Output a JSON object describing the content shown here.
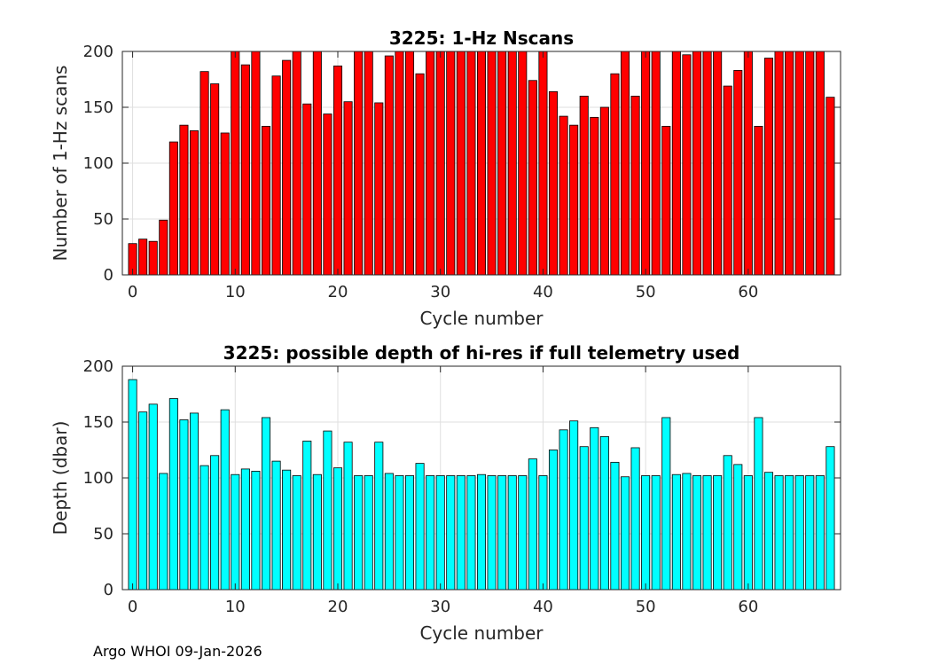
{
  "footer": "Argo WHOI 09-Jan-2026",
  "chart_data": [
    {
      "type": "bar",
      "title": "3225: 1-Hz Nscans",
      "xlabel": "Cycle number",
      "ylabel": "Number of 1-Hz scans",
      "xlim": [
        -1,
        69
      ],
      "ylim": [
        0,
        200
      ],
      "xticks": [
        0,
        10,
        20,
        30,
        40,
        50,
        60
      ],
      "yticks": [
        0,
        50,
        100,
        150,
        200
      ],
      "grid": true,
      "color": "#ff0000",
      "x": [
        0,
        1,
        2,
        3,
        4,
        5,
        6,
        7,
        8,
        9,
        10,
        11,
        12,
        13,
        14,
        15,
        16,
        17,
        18,
        19,
        20,
        21,
        22,
        23,
        24,
        25,
        26,
        27,
        28,
        29,
        30,
        31,
        32,
        33,
        34,
        35,
        36,
        37,
        38,
        39,
        40,
        41,
        42,
        43,
        44,
        45,
        46,
        47,
        48,
        49,
        50,
        51,
        52,
        53,
        54,
        55,
        56,
        57,
        58,
        59,
        60,
        61,
        62,
        63,
        64,
        65,
        66,
        67,
        68
      ],
      "values": [
        28,
        32,
        30,
        49,
        119,
        134,
        129,
        182,
        171,
        127,
        200,
        188,
        200,
        133,
        178,
        192,
        200,
        153,
        200,
        144,
        187,
        155,
        200,
        200,
        154,
        196,
        200,
        200,
        180,
        200,
        200,
        200,
        200,
        200,
        200,
        200,
        200,
        200,
        200,
        174,
        200,
        164,
        142,
        134,
        160,
        141,
        150,
        180,
        200,
        160,
        200,
        200,
        133,
        200,
        197,
        200,
        200,
        200,
        169,
        183,
        200,
        133,
        194,
        200,
        200,
        200,
        200,
        200,
        159
      ]
    },
    {
      "type": "bar",
      "title": "3225: possible depth of hi-res if full telemetry used",
      "xlabel": "Cycle number",
      "ylabel": "Depth (dbar)",
      "xlim": [
        -1,
        69
      ],
      "ylim": [
        0,
        200
      ],
      "xticks": [
        0,
        10,
        20,
        30,
        40,
        50,
        60
      ],
      "yticks": [
        0,
        50,
        100,
        150,
        200
      ],
      "grid": true,
      "color": "#00ffff",
      "x": [
        0,
        1,
        2,
        3,
        4,
        5,
        6,
        7,
        8,
        9,
        10,
        11,
        12,
        13,
        14,
        15,
        16,
        17,
        18,
        19,
        20,
        21,
        22,
        23,
        24,
        25,
        26,
        27,
        28,
        29,
        30,
        31,
        32,
        33,
        34,
        35,
        36,
        37,
        38,
        39,
        40,
        41,
        42,
        43,
        44,
        45,
        46,
        47,
        48,
        49,
        50,
        51,
        52,
        53,
        54,
        55,
        56,
        57,
        58,
        59,
        60,
        61,
        62,
        63,
        64,
        65,
        66,
        67,
        68
      ],
      "values": [
        188,
        159,
        166,
        104,
        171,
        152,
        158,
        111,
        120,
        161,
        103,
        108,
        106,
        154,
        115,
        107,
        102,
        133,
        103,
        142,
        109,
        132,
        102,
        102,
        132,
        104,
        102,
        102,
        113,
        102,
        102,
        102,
        102,
        102,
        103,
        102,
        102,
        102,
        102,
        117,
        102,
        125,
        143,
        151,
        128,
        145,
        137,
        114,
        101,
        127,
        102,
        102,
        154,
        103,
        104,
        102,
        102,
        102,
        120,
        112,
        102,
        154,
        105,
        102,
        102,
        102,
        102,
        102,
        128
      ]
    }
  ]
}
